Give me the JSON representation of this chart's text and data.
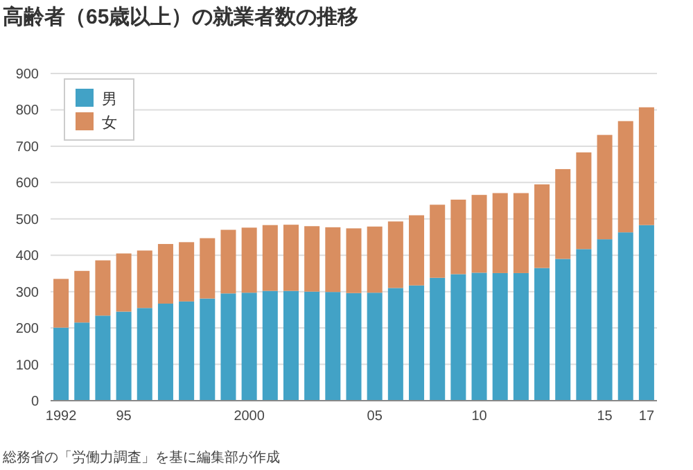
{
  "chart_data": {
    "type": "bar",
    "stacked": true,
    "title": "高齢者（65歳以上）の就業者数の推移",
    "categories": [
      "1992",
      null,
      null,
      "95",
      null,
      null,
      null,
      null,
      null,
      "2000",
      null,
      null,
      null,
      null,
      null,
      "05",
      null,
      null,
      null,
      null,
      "10",
      null,
      null,
      null,
      null,
      null,
      "15",
      null,
      "17"
    ],
    "series": [
      {
        "name": "男",
        "color": "#42a2c6",
        "values": [
          201,
          215,
          234,
          245,
          255,
          267,
          273,
          281,
          295,
          297,
          302,
          302,
          300,
          299,
          296,
          297,
          310,
          317,
          338,
          348,
          352,
          351,
          351,
          365,
          390,
          417,
          444,
          463,
          483
        ]
      },
      {
        "name": "女",
        "color": "#d98e60",
        "values": [
          134,
          142,
          152,
          160,
          158,
          164,
          163,
          166,
          175,
          179,
          181,
          182,
          180,
          178,
          178,
          182,
          183,
          193,
          201,
          205,
          214,
          220,
          220,
          230,
          247,
          266,
          287,
          306,
          324
        ]
      }
    ],
    "ylim": [
      0,
      900
    ],
    "yticks": [
      0,
      100,
      200,
      300,
      400,
      500,
      600,
      700,
      800,
      900
    ],
    "grid": "y",
    "legend": "top left",
    "annotations": [
      "総務省の「労働力調査」を基に編集部が作成"
    ]
  }
}
